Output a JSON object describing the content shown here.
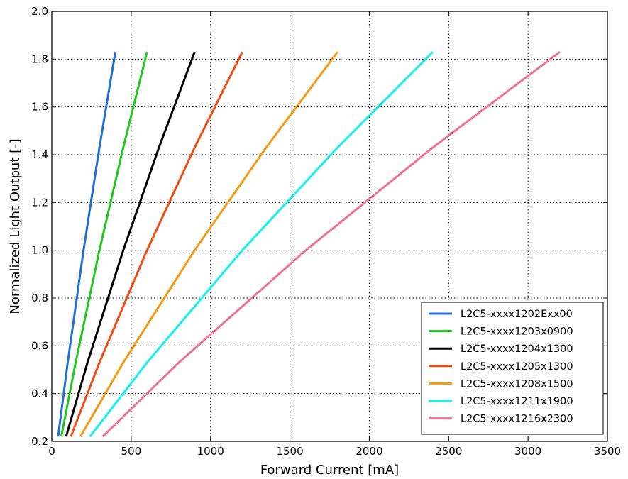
{
  "chart_data": {
    "type": "line",
    "xlabel": "Forward Current [mA]",
    "ylabel": "Normalized Light Output [-]",
    "xlim": [
      0,
      3500
    ],
    "ylim": [
      0.2,
      2.0
    ],
    "xticks": [
      0,
      500,
      1000,
      1500,
      2000,
      2500,
      3000,
      3500
    ],
    "yticks": [
      0.2,
      0.4,
      0.6,
      0.8,
      1.0,
      1.2,
      1.4,
      1.6,
      1.8,
      2.0
    ],
    "xtick_labels": [
      "0",
      "500",
      "1000",
      "1500",
      "2000",
      "2500",
      "3000",
      "3500"
    ],
    "ytick_labels": [
      "0.2",
      "0.4",
      "0.6",
      "0.8",
      "1.0",
      "1.2",
      "1.4",
      "1.6",
      "1.8",
      "2.0"
    ],
    "grid": true,
    "legend_position": "bottom-right",
    "series": [
      {
        "name": "L2C5-xxxx1202Exx00",
        "color": "#1f6fd8",
        "x": [
          40,
          100,
          200,
          300,
          400
        ],
        "y": [
          0.22,
          0.53,
          1.0,
          1.43,
          1.83
        ]
      },
      {
        "name": "L2C5-xxxx1203x0900",
        "color": "#1ec81e",
        "x": [
          60,
          150,
          300,
          450,
          600
        ],
        "y": [
          0.22,
          0.53,
          1.0,
          1.43,
          1.83
        ]
      },
      {
        "name": "L2C5-xxxx1204x1300",
        "color": "#000000",
        "x": [
          90,
          225,
          450,
          675,
          900
        ],
        "y": [
          0.22,
          0.53,
          1.0,
          1.43,
          1.83
        ]
      },
      {
        "name": "L2C5-xxxx1205x1300",
        "color": "#f04a12",
        "x": [
          120,
          300,
          600,
          900,
          1200
        ],
        "y": [
          0.22,
          0.53,
          1.0,
          1.43,
          1.83
        ]
      },
      {
        "name": "L2C5-xxxx1208x1500",
        "color": "#f59a12",
        "x": [
          180,
          450,
          900,
          1350,
          1800
        ],
        "y": [
          0.22,
          0.53,
          1.0,
          1.43,
          1.83
        ]
      },
      {
        "name": "L2C5-xxxx1211x1900",
        "color": "#12f0f0",
        "x": [
          240,
          600,
          1200,
          1800,
          2400
        ],
        "y": [
          0.22,
          0.53,
          1.0,
          1.43,
          1.83
        ]
      },
      {
        "name": "L2C5-xxxx1216x2300",
        "color": "#f07090",
        "x": [
          320,
          800,
          1600,
          2400,
          3200
        ],
        "y": [
          0.22,
          0.53,
          1.0,
          1.43,
          1.83
        ]
      }
    ]
  }
}
